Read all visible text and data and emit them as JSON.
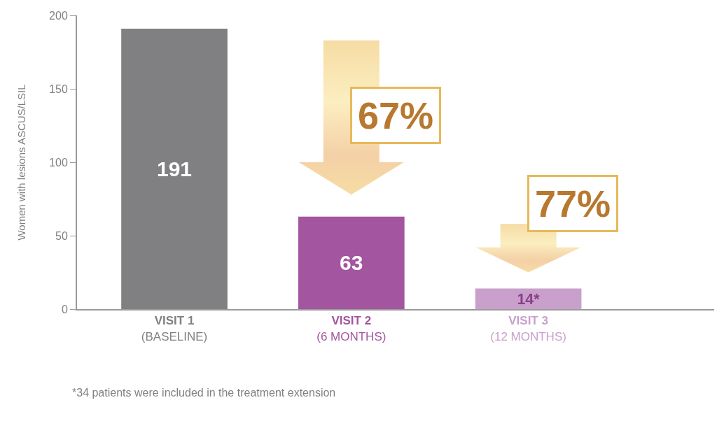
{
  "chart_data": {
    "type": "bar",
    "ylabel": "Women with lesions ASCUS/LSIL",
    "categories": [
      "VISIT 1\n(BASELINE)",
      "VISIT 2\n(6 MONTHS)",
      "VISIT 3\n(12 MONTHS)"
    ],
    "values": [
      191,
      63,
      14
    ],
    "colors": [
      "#808083",
      "#a3559f",
      "#c9a0cb"
    ],
    "value_labels": [
      "191",
      "63",
      "14*"
    ],
    "ylim": [
      0,
      200
    ],
    "yticks": [
      0,
      50,
      100,
      150,
      200
    ],
    "grid": false,
    "annotations": [
      "67%",
      "77%",
      "*34 patients were included in the treatment extension"
    ]
  }
}
